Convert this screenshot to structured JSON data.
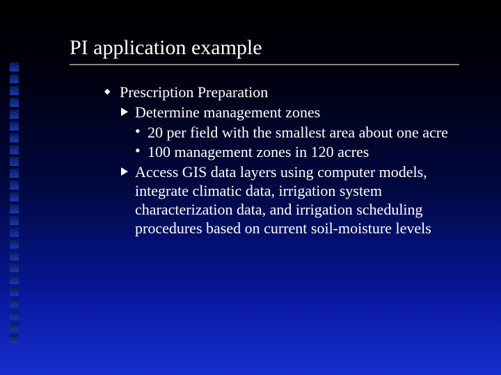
{
  "slide": {
    "background_gradient": [
      "#000000",
      "#000840",
      "#1830d0"
    ],
    "title_color": "#ffffff",
    "text_color": "#ffffff",
    "title_fontsize": 30,
    "body_fontsize": 22,
    "decor_square_count": 24,
    "decor_square_color": "#1838b0"
  },
  "title": "PI application example",
  "bullets": {
    "b1": "Prescription Preparation",
    "b1_1": "Determine management zones",
    "b1_1_1": "20 per field with the smallest area about one acre",
    "b1_1_2": "100 management zones in 120 acres",
    "b1_2": "Access GIS data layers using computer models, integrate climatic data, irrigation system characterization data, and irrigation scheduling procedures based on current soil-moisture levels"
  }
}
